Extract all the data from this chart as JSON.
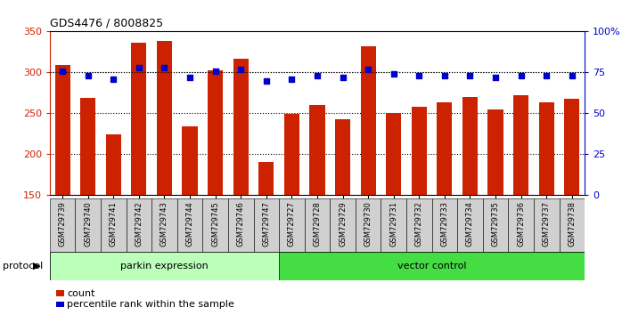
{
  "title": "GDS4476 / 8008825",
  "samples": [
    "GSM729739",
    "GSM729740",
    "GSM729741",
    "GSM729742",
    "GSM729743",
    "GSM729744",
    "GSM729745",
    "GSM729746",
    "GSM729747",
    "GSM729727",
    "GSM729728",
    "GSM729729",
    "GSM729730",
    "GSM729731",
    "GSM729732",
    "GSM729733",
    "GSM729734",
    "GSM729735",
    "GSM729736",
    "GSM729737",
    "GSM729738"
  ],
  "bar_values": [
    309,
    269,
    224,
    336,
    339,
    234,
    303,
    317,
    191,
    249,
    260,
    243,
    332,
    251,
    258,
    263,
    270,
    255,
    272,
    264,
    268
  ],
  "percentile_values": [
    76,
    73,
    71,
    78,
    78,
    72,
    76,
    77,
    70,
    71,
    73,
    72,
    77,
    74,
    73,
    73,
    73,
    72,
    73,
    73,
    73
  ],
  "bar_color": "#cc2200",
  "dot_color": "#0000cc",
  "ylim_left": [
    150,
    350
  ],
  "ylim_right": [
    0,
    100
  ],
  "yticks_left": [
    150,
    200,
    250,
    300,
    350
  ],
  "yticks_right": [
    0,
    25,
    50,
    75,
    100
  ],
  "ytick_labels_right": [
    "0",
    "25",
    "50",
    "75",
    "100%"
  ],
  "grid_values": [
    200,
    250,
    300
  ],
  "parkin_count": 9,
  "vector_count": 12,
  "parkin_color": "#bbffbb",
  "vector_color": "#44dd44",
  "protocol_label": "protocol",
  "parkin_label": "parkin expression",
  "vector_label": "vector control",
  "legend_count_label": "count",
  "legend_pct_label": "percentile rank within the sample",
  "bar_width": 0.6,
  "background_color": "#ffffff",
  "ticklabel_bg": "#cccccc"
}
